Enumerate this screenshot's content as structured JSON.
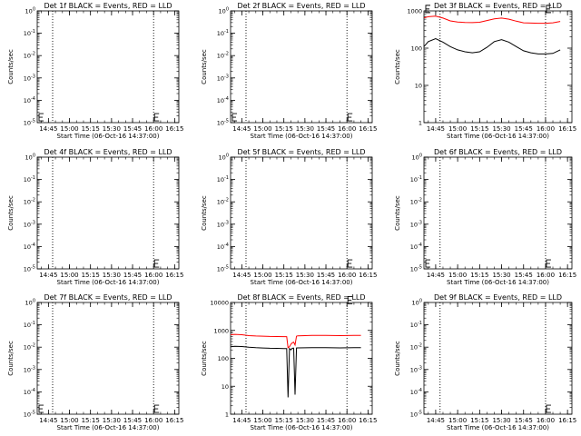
{
  "figure": {
    "background": "#ffffff",
    "colors": {
      "events": "#000000",
      "lld": "#ff0000",
      "axis": "#000000"
    }
  },
  "chart_data": [
    {
      "type": "line",
      "detector": "1f",
      "title": "Det 1f BLACK = Events, RED = LLD",
      "xlabel": "Start Time (06-Oct-16 14:37:00)",
      "ylabel": "Counts/sec",
      "xticks": [
        "14:45",
        "15:00",
        "15:15",
        "15:30",
        "15:45",
        "16:00",
        "16:15"
      ],
      "yticks": [
        "10^-5",
        "10^-4",
        "10^-3",
        "10^-2",
        "10^-1",
        "10^0"
      ],
      "ylim": [
        1,
        100000
      ],
      "yscale": "log",
      "vlines": [
        "14:48",
        "16:00"
      ],
      "markers": [
        {
          "x": "14:37",
          "y": 1.2
        },
        {
          "x": "16:00",
          "y": 1.2
        }
      ],
      "series": []
    },
    {
      "type": "line",
      "detector": "2f",
      "title": "Det 2f BLACK = Events, RED = LLD",
      "xlabel": "Start Time (06-Oct-16 14:37:00)",
      "ylabel": "Counts/sec",
      "xticks": [
        "14:45",
        "15:00",
        "15:15",
        "15:30",
        "15:45",
        "16:00",
        "16:15"
      ],
      "yticks": [
        "10^-5",
        "10^-4",
        "10^-3",
        "10^-2",
        "10^-1",
        "10^0"
      ],
      "ylim": [
        1,
        100000
      ],
      "yscale": "log",
      "vlines": [
        "14:48",
        "16:00"
      ],
      "markers": [
        {
          "x": "14:37",
          "y": 1.2
        },
        {
          "x": "16:00",
          "y": 1.2
        }
      ],
      "series": []
    },
    {
      "type": "line",
      "detector": "3f",
      "title": "Det 3f BLACK = Events, RED = LLD",
      "xlabel": "Start Time (06-Oct-16 14:37:00)",
      "ylabel": "Counts/sec",
      "xticks": [
        "14:45",
        "15:00",
        "15:15",
        "15:30",
        "15:45",
        "16:00",
        "16:15"
      ],
      "yticks": [
        "1",
        "10",
        "100",
        "1000"
      ],
      "ylim": [
        1,
        1000
      ],
      "yscale": "log",
      "vlines": [
        "14:48",
        "16:00"
      ],
      "markers": [
        {
          "x": "14:37",
          "y": 900
        },
        {
          "x": "16:00",
          "y": 900
        }
      ],
      "series": [
        {
          "name": "Events",
          "color": "#000000",
          "x": [
            "14:37",
            "14:40",
            "14:45",
            "14:50",
            "14:55",
            "15:00",
            "15:05",
            "15:10",
            "15:15",
            "15:20",
            "15:25",
            "15:30",
            "15:35",
            "15:40",
            "15:45",
            "15:50",
            "15:55",
            "16:00",
            "16:05",
            "16:10"
          ],
          "y": [
            110,
            150,
            180,
            145,
            110,
            90,
            80,
            75,
            80,
            105,
            150,
            170,
            145,
            110,
            85,
            75,
            70,
            70,
            72,
            90
          ]
        },
        {
          "name": "LLD",
          "color": "#ff0000",
          "x": [
            "14:37",
            "14:40",
            "14:45",
            "14:50",
            "14:55",
            "15:00",
            "15:05",
            "15:10",
            "15:15",
            "15:20",
            "15:25",
            "15:30",
            "15:35",
            "15:40",
            "15:45",
            "15:50",
            "15:55",
            "16:00",
            "16:05",
            "16:10"
          ],
          "y": [
            650,
            700,
            720,
            640,
            540,
            500,
            490,
            485,
            495,
            550,
            610,
            640,
            600,
            530,
            480,
            470,
            465,
            465,
            480,
            520
          ]
        }
      ]
    },
    {
      "type": "line",
      "detector": "4f",
      "title": "Det 4f BLACK = Events, RED = LLD",
      "xlabel": "Start Time (06-Oct-16 14:37:00)",
      "ylabel": "Counts/sec",
      "xticks": [
        "14:45",
        "15:00",
        "15:15",
        "15:30",
        "15:45",
        "16:00",
        "16:15"
      ],
      "yticks": [
        "10^-5",
        "10^-4",
        "10^-3",
        "10^-2",
        "10^-1",
        "10^0"
      ],
      "ylim": [
        1,
        100000
      ],
      "yscale": "log",
      "vlines": [
        "14:48",
        "16:00"
      ],
      "markers": [
        {
          "x": "16:00",
          "y": 1.2
        }
      ],
      "series": []
    },
    {
      "type": "line",
      "detector": "5f",
      "title": "Det 5f BLACK = Events, RED = LLD",
      "xlabel": "Start Time (06-Oct-16 14:37:00)",
      "ylabel": "Counts/sec",
      "xticks": [
        "14:45",
        "15:00",
        "15:15",
        "15:30",
        "15:45",
        "16:00",
        "16:15"
      ],
      "yticks": [
        "10^-5",
        "10^-4",
        "10^-3",
        "10^-2",
        "10^-1",
        "10^0"
      ],
      "ylim": [
        1,
        100000
      ],
      "yscale": "log",
      "vlines": [
        "14:48",
        "16:00"
      ],
      "markers": [
        {
          "x": "16:00",
          "y": 1.2
        }
      ],
      "series": []
    },
    {
      "type": "line",
      "detector": "6f",
      "title": "Det 6f BLACK = Events, RED = LLD",
      "xlabel": "Start Time (06-Oct-16 14:37:00)",
      "ylabel": "Counts/sec",
      "xticks": [
        "14:45",
        "15:00",
        "15:15",
        "15:30",
        "15:45",
        "16:00",
        "16:15"
      ],
      "yticks": [
        "10^-5",
        "10^-4",
        "10^-3",
        "10^-2",
        "10^-1",
        "10^0"
      ],
      "ylim": [
        1,
        100000
      ],
      "yscale": "log",
      "vlines": [
        "14:48",
        "16:00"
      ],
      "markers": [
        {
          "x": "14:37",
          "y": 1.2
        },
        {
          "x": "16:00",
          "y": 1.2
        }
      ],
      "series": []
    },
    {
      "type": "line",
      "detector": "7f",
      "title": "Det 7f BLACK = Events, RED = LLD",
      "xlabel": "Start Time (06-Oct-16 14:37:00)",
      "ylabel": "Counts/sec",
      "xticks": [
        "14:45",
        "15:00",
        "15:15",
        "15:30",
        "15:45",
        "16:00",
        "16:15"
      ],
      "yticks": [
        "10^-5",
        "10^-4",
        "10^-3",
        "10^-2",
        "10^-1",
        "10^0"
      ],
      "ylim": [
        1,
        100000
      ],
      "yscale": "log",
      "vlines": [
        "14:48",
        "16:00"
      ],
      "markers": [
        {
          "x": "14:37",
          "y": 1.2
        },
        {
          "x": "16:00",
          "y": 1.2
        }
      ],
      "series": []
    },
    {
      "type": "line",
      "detector": "8f",
      "title": "Det 8f BLACK = Events, RED = LLD",
      "xlabel": "Start Time (06-Oct-16 14:37:00)",
      "ylabel": "Counts/sec",
      "xticks": [
        "14:45",
        "15:00",
        "15:15",
        "15:30",
        "15:45",
        "16:00",
        "16:15"
      ],
      "yticks": [
        "1",
        "10",
        "100",
        "1000",
        "10000"
      ],
      "ylim": [
        1,
        10000
      ],
      "yscale": "log",
      "vlines": [
        "14:48",
        "16:00"
      ],
      "markers": [
        {
          "x": "16:00",
          "y": 9000
        }
      ],
      "series": [
        {
          "name": "Events",
          "color": "#000000",
          "x": [
            "14:37",
            "14:40",
            "14:45",
            "14:50",
            "14:55",
            "15:00",
            "15:05",
            "15:10",
            "15:15",
            "15:17",
            "15:18",
            "15:19",
            "15:20",
            "15:21",
            "15:22",
            "15:23",
            "15:24",
            "15:25",
            "15:30",
            "15:35",
            "15:40",
            "15:45",
            "15:50",
            "15:55",
            "16:00",
            "16:05",
            "16:10"
          ],
          "y": [
            260,
            270,
            265,
            250,
            240,
            235,
            230,
            228,
            225,
            224,
            4,
            224,
            200,
            230,
            232,
            5,
            235,
            236,
            238,
            240,
            242,
            240,
            238,
            236,
            238,
            240,
            242
          ]
        },
        {
          "name": "LLD",
          "color": "#ff0000",
          "x": [
            "14:37",
            "14:40",
            "14:45",
            "14:50",
            "14:55",
            "15:00",
            "15:05",
            "15:10",
            "15:15",
            "15:17",
            "15:18",
            "15:19",
            "15:20",
            "15:21",
            "15:22",
            "15:23",
            "15:24",
            "15:25",
            "15:30",
            "15:35",
            "15:40",
            "15:45",
            "15:50",
            "15:55",
            "16:00",
            "16:05",
            "16:10"
          ],
          "y": [
            700,
            720,
            700,
            650,
            630,
            620,
            610,
            605,
            600,
            600,
            240,
            260,
            320,
            360,
            380,
            300,
            620,
            640,
            650,
            660,
            665,
            660,
            655,
            650,
            655,
            660,
            665
          ]
        }
      ]
    },
    {
      "type": "line",
      "detector": "9f",
      "title": "Det 9f BLACK = Events, RED = LLD",
      "xlabel": "Start Time (06-Oct-16 14:37:00)",
      "ylabel": "Counts/sec",
      "xticks": [
        "14:45",
        "15:00",
        "15:15",
        "15:30",
        "15:45",
        "16:00",
        "16:15"
      ],
      "yticks": [
        "10^-5",
        "10^-4",
        "10^-3",
        "10^-2",
        "10^-1",
        "10^0"
      ],
      "ylim": [
        1,
        100000
      ],
      "yscale": "log",
      "vlines": [
        "14:48",
        "16:00"
      ],
      "markers": [
        {
          "x": "16:00",
          "y": 1.2
        }
      ],
      "series": []
    }
  ]
}
